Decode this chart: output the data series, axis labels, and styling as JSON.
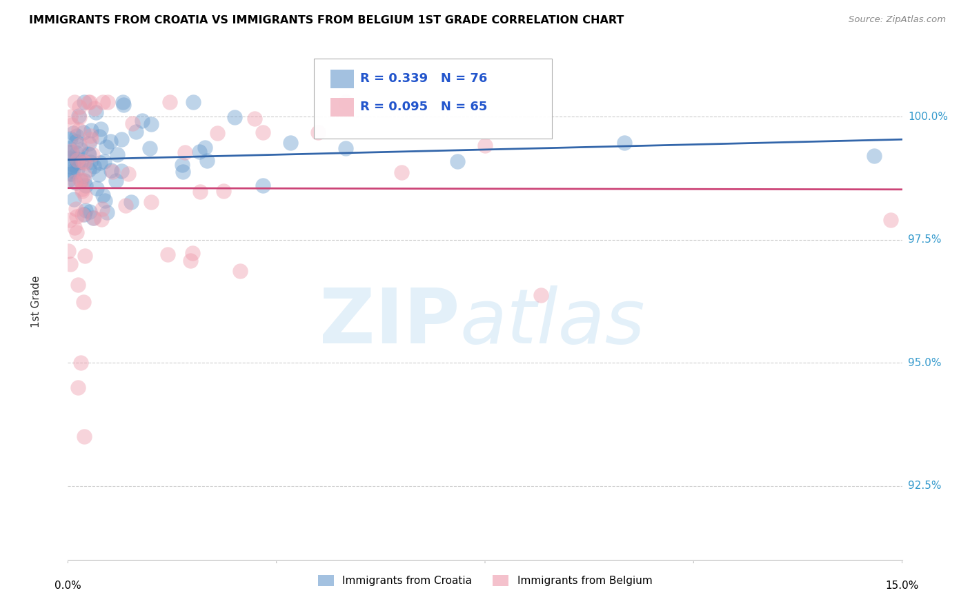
{
  "title": "IMMIGRANTS FROM CROATIA VS IMMIGRANTS FROM BELGIUM 1ST GRADE CORRELATION CHART",
  "source": "Source: ZipAtlas.com",
  "ylabel": "1st Grade",
  "y_ticks": [
    92.5,
    95.0,
    97.5,
    100.0
  ],
  "y_tick_labels": [
    "92.5%",
    "95.0%",
    "97.5%",
    "100.0%"
  ],
  "xlim": [
    0.0,
    15.0
  ],
  "ylim": [
    91.0,
    101.2
  ],
  "legend1_label": "Immigrants from Croatia",
  "legend2_label": "Immigrants from Belgium",
  "R_croatia": 0.339,
  "N_croatia": 76,
  "R_belgium": 0.095,
  "N_belgium": 65,
  "color_croatia": "#6699cc",
  "color_belgium": "#ee99aa",
  "trendline_color_croatia": "#3366aa",
  "trendline_color_belgium": "#cc4477"
}
